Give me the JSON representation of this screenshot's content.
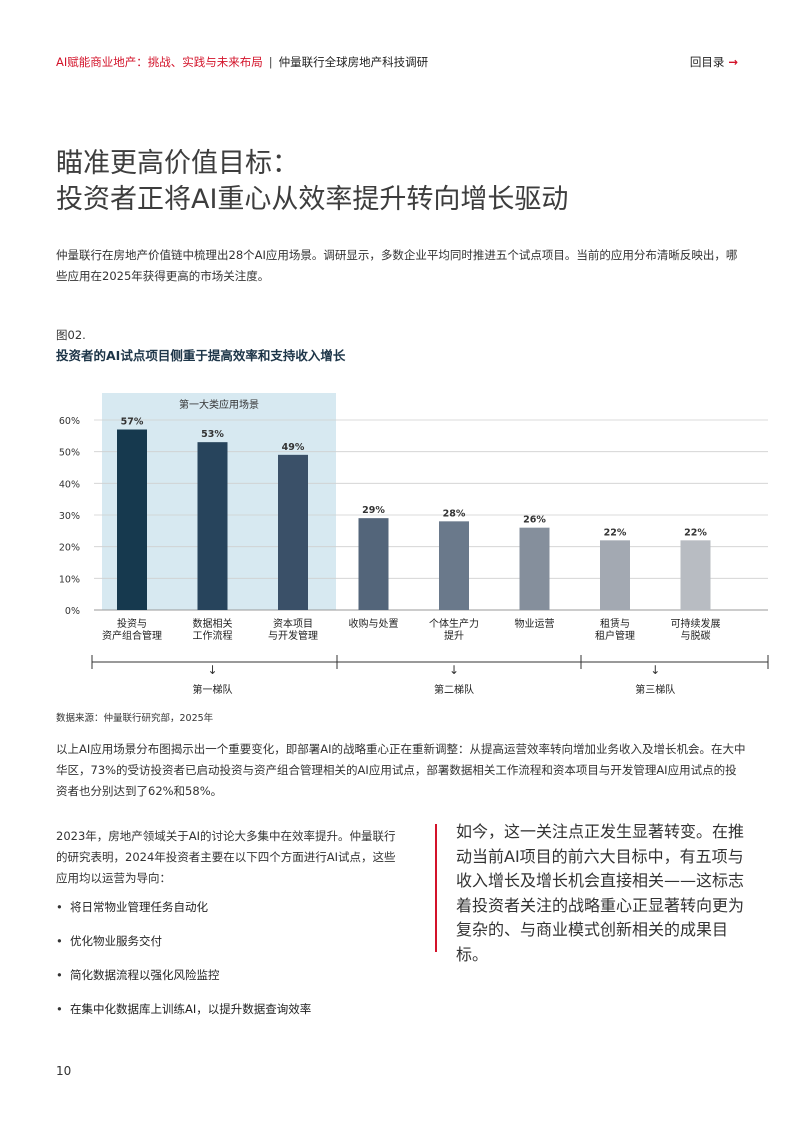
{
  "header": {
    "report_title": "AI赋能商业地产：挑战、实践与未来布局",
    "separator": "|",
    "report_subtitle": "仲量联行全球房地产科技调研",
    "back_label": "回目录",
    "back_arrow": "→"
  },
  "title": {
    "line1": "瞄准更高价值目标：",
    "line2": "投资者正将AI重心从效率提升转向增长驱动"
  },
  "intro": "仲量联行在房地产价值链中梳理出28个AI应用场景。调研显示，多数企业平均同时推进五个试点项目。当前的应用分布清晰反映出，哪些应用在2025年获得更高的市场关注度。",
  "figure": {
    "number": "图02.",
    "title": "投资者的AI试点项目侧重于提高效率和支持收入增长",
    "source": "数据来源：仲量联行研究部，2025年"
  },
  "chart_data": {
    "type": "bar",
    "categories": [
      [
        "投资与",
        "资产组合管理"
      ],
      [
        "数据相关",
        "工作流程"
      ],
      [
        "资本项目",
        "与开发管理"
      ],
      [
        "收购与处置"
      ],
      [
        "个体生产力",
        "提升"
      ],
      [
        "物业运营"
      ],
      [
        "租赁与",
        "租户管理"
      ],
      [
        "可持续发展",
        "与脱碳"
      ]
    ],
    "values": [
      57,
      53,
      49,
      29,
      28,
      26,
      22,
      22
    ],
    "value_labels": [
      "57%",
      "53%",
      "49%",
      "29%",
      "28%",
      "26%",
      "22%",
      "22%"
    ],
    "bar_colors": [
      "#16394e",
      "#27445c",
      "#3a5068",
      "#53657a",
      "#6a798b",
      "#858f9c",
      "#a3a9b2",
      "#b8bcc2"
    ],
    "ylim": [
      0,
      60
    ],
    "yticks": [
      0,
      10,
      20,
      30,
      40,
      50,
      60
    ],
    "ytick_labels": [
      "0%",
      "10%",
      "20%",
      "30%",
      "40%",
      "50%",
      "60%"
    ],
    "grid": true,
    "highlight": {
      "label": "第一大类应用场景",
      "color": "#d7e9f1",
      "bars": [
        0,
        1,
        2
      ]
    },
    "tiers": [
      {
        "label": "第一梯队",
        "bars": [
          0,
          1,
          2
        ]
      },
      {
        "label": "第二梯队",
        "bars": [
          3,
          4,
          5
        ]
      },
      {
        "label": "第三梯队",
        "bars": [
          6,
          7
        ]
      }
    ],
    "arrow_glyph": "↓"
  },
  "para2": "以上AI应用场景分布图揭示出一个重要变化，即部署AI的战略重心正在重新调整：从提高运营效率转向增加业务收入及增长机会。在大中华区，73%的受访投资者已启动投资与资产组合管理相关的AI应用试点，部署数据相关工作流程和资本项目与开发管理AI应用试点的投资者也分别达到了62%和58%。",
  "left_col": {
    "paragraph": "2023年，房地产领域关于AI的讨论大多集中在效率提升。仲量联行的研究表明，2024年投资者主要在以下四个方面进行AI试点，这些应用均以运营为导向：",
    "bullets": [
      "将日常物业管理任务自动化",
      "优化物业服务交付",
      "简化数据流程以强化风险监控",
      "在集中化数据库上训练AI，以提升数据查询效率"
    ]
  },
  "quote": "如今，这一关注点正发生显著转变。在推动当前AI项目的前六大目标中，有五项与收入增长及增长机会直接相关——这标志着投资者关注的战略重心正显著转向更为复杂的、与商业模式创新相关的成果目标。",
  "page_number": "10",
  "colors": {
    "accent": "#d3132a",
    "title_navy": "#1d3548"
  }
}
